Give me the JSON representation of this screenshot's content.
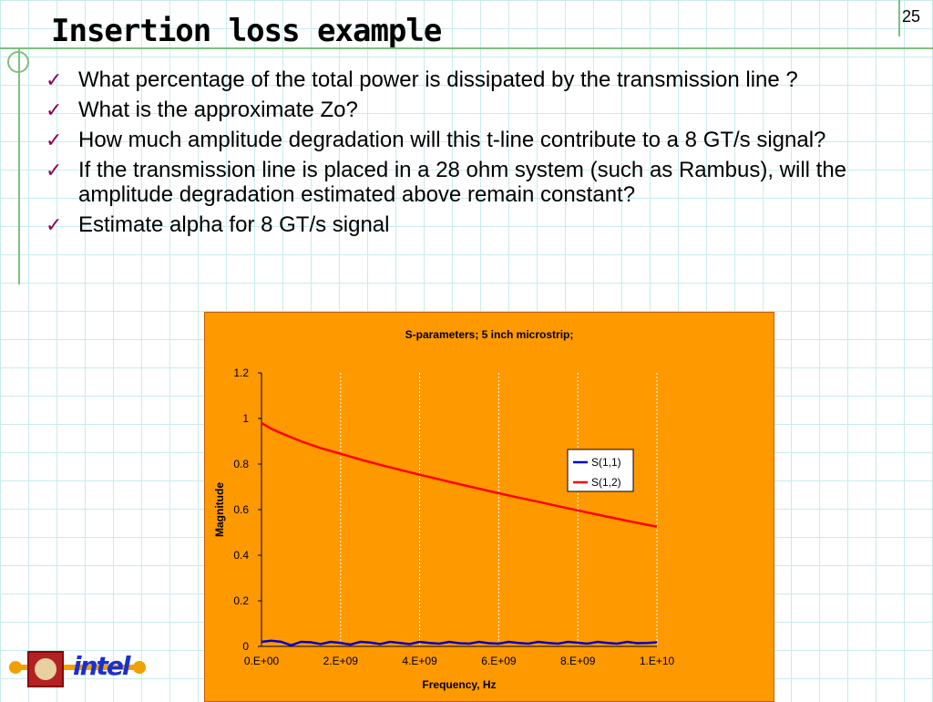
{
  "slide": {
    "title": "Insertion loss example",
    "page_number": "25"
  },
  "bullets": [
    "What percentage of the total power is dissipated by the transmission line ?",
    "What is the approximate Zo?",
    "How much amplitude degradation will this t-line contribute to a 8 GT/s signal?",
    "If the transmission line is placed in a 28 ohm system (such as Rambus), will the amplitude degradation estimated above remain constant?",
    "Estimate alpha for 8 GT/s signal"
  ],
  "logo": {
    "brand": "intel"
  },
  "colors": {
    "accent_check": "#8b0057",
    "chart_bg": "#ff9900",
    "s11": "#0000cc",
    "s12": "#ff0000"
  },
  "chart_data": {
    "type": "line",
    "title": "S-parameters; 5 inch microstrip;",
    "xlabel": "Frequency, Hz",
    "ylabel": "Magnitude",
    "xlim": [
      0,
      10000000000
    ],
    "ylim": [
      0,
      1.2
    ],
    "x_tick_labels": [
      "0.E+00",
      "2.E+09",
      "4.E+09",
      "6.E+09",
      "8.E+09",
      "1.E+10"
    ],
    "y_tick_labels": [
      "0",
      "0.2",
      "0.4",
      "0.6",
      "0.8",
      "1",
      "1.2"
    ],
    "grid": true,
    "legend": "right",
    "series": [
      {
        "name": "S(1,1)",
        "color": "#0000cc",
        "x": [
          0,
          250000000,
          500000000,
          750000000,
          1000000000,
          1250000000,
          1500000000,
          1750000000,
          2000000000,
          2250000000,
          2500000000,
          2750000000,
          3000000000,
          3250000000,
          3500000000,
          3750000000,
          4000000000,
          4250000000,
          4500000000,
          4750000000,
          5000000000,
          5250000000,
          5500000000,
          5750000000,
          6000000000,
          6250000000,
          6500000000,
          6750000000,
          7000000000,
          7250000000,
          7500000000,
          7750000000,
          8000000000,
          8250000000,
          8500000000,
          8750000000,
          9000000000,
          9250000000,
          9500000000,
          9750000000,
          10000000000
        ],
        "y": [
          0.02,
          0.025,
          0.02,
          0.005,
          0.02,
          0.018,
          0.01,
          0.02,
          0.015,
          0.008,
          0.02,
          0.017,
          0.01,
          0.02,
          0.015,
          0.01,
          0.02,
          0.015,
          0.012,
          0.02,
          0.014,
          0.012,
          0.02,
          0.014,
          0.012,
          0.02,
          0.015,
          0.012,
          0.02,
          0.015,
          0.012,
          0.02,
          0.016,
          0.012,
          0.02,
          0.015,
          0.012,
          0.02,
          0.014,
          0.015,
          0.018
        ]
      },
      {
        "name": "S(1,2)",
        "color": "#ff0000",
        "x": [
          0,
          250000000,
          500000000,
          1000000000,
          1500000000,
          2000000000,
          2500000000,
          3000000000,
          3500000000,
          4000000000,
          4500000000,
          5000000000,
          5500000000,
          6000000000,
          6500000000,
          7000000000,
          7500000000,
          8000000000,
          8500000000,
          9000000000,
          9500000000,
          10000000000
        ],
        "y": [
          0.98,
          0.955,
          0.935,
          0.9,
          0.87,
          0.845,
          0.82,
          0.797,
          0.775,
          0.753,
          0.733,
          0.712,
          0.692,
          0.672,
          0.653,
          0.635,
          0.615,
          0.597,
          0.578,
          0.56,
          0.542,
          0.525
        ]
      }
    ]
  }
}
